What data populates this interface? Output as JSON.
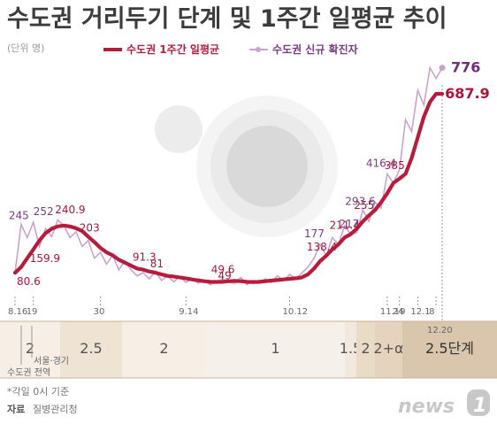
{
  "chart_data": {
    "type": "line",
    "title": "수도권 거리두기 단계 및 1주간 일평균 추이",
    "unit": "(단위 명)",
    "ylim": [
      0,
      820
    ],
    "series": [
      {
        "name": "수도권 1주간 일평균",
        "color": "#b71c3c",
        "values": [
          80.6,
          100,
          130,
          159.9,
          190,
          215,
          230,
          238,
          240.9,
          238,
          232,
          222,
          203,
          185,
          165,
          150,
          140,
          125,
          115,
          105,
          95,
          91.3,
          85,
          81,
          75,
          70,
          68,
          65,
          62,
          58,
          55,
          52,
          50,
          49.6,
          50,
          52,
          53,
          52,
          50,
          49,
          50,
          52,
          54,
          56,
          58,
          60,
          62,
          65,
          75,
          95,
          120,
          138.4,
          160,
          177,
          200,
          211.4,
          230,
          255,
          275,
          293.6,
          320,
          350,
          385,
          400,
          416.4,
          470,
          540,
          610,
          660,
          687.9,
          687.9
        ]
      },
      {
        "name": "수도권 신규 확진자",
        "color": "#c9a3d0",
        "values": [
          80.6,
          245,
          200,
          252,
          170,
          230,
          203,
          260,
          240.9,
          200,
          220,
          170,
          190,
          130,
          150,
          110,
          140,
          90,
          120,
          91.3,
          70,
          81,
          60,
          85,
          55,
          70,
          50,
          68,
          48,
          60,
          45,
          55,
          40,
          49.6,
          60,
          49,
          45,
          65,
          40,
          55,
          45,
          60,
          48,
          70,
          55,
          75,
          60,
          80,
          100,
          130,
          177,
          138.4,
          200,
          177,
          240,
          211.4,
          217,
          293.6,
          255,
          320,
          300,
          416.4,
          385,
          430,
          600,
          560,
          700,
          650,
          776,
          740,
          776
        ]
      }
    ],
    "x_ticks": [
      "8.16",
      "19",
      "30",
      "9.14",
      "10.12",
      "11.19",
      "24",
      "12.1",
      "8"
    ],
    "labels_avg": [
      "80.6",
      "159.9",
      "240.9",
      "203",
      "91.3",
      "81",
      "49.6",
      "49",
      "138.4",
      "211.4",
      "255",
      "385",
      "687.9"
    ],
    "labels_daily": [
      "245",
      "252",
      "177",
      "217",
      "293.6",
      "416.4",
      "776"
    ]
  },
  "stages": {
    "bands": [
      {
        "label": "2",
        "color": "#f7efe6"
      },
      {
        "label": "2.5",
        "color": "#efe3d4"
      },
      {
        "label": "2",
        "color": "#f7efe6"
      },
      {
        "label": "1",
        "color": "#f5f0ea"
      },
      {
        "label": "1.5",
        "color": "#f2e8dc"
      },
      {
        "label": "2",
        "color": "#eadbc7"
      },
      {
        "label": "2+α",
        "color": "#e5d3be"
      },
      {
        "label": "2.5단계",
        "color": "#dac5ad"
      }
    ],
    "last_date": "12.20",
    "note_seoul": "서울·경기",
    "note_metro": "수도권 전역"
  },
  "footer": {
    "note": "*각일 0시 기준",
    "source_label": "자료",
    "source": "질병관리청",
    "logo": "news",
    "logo_digit": "1"
  }
}
